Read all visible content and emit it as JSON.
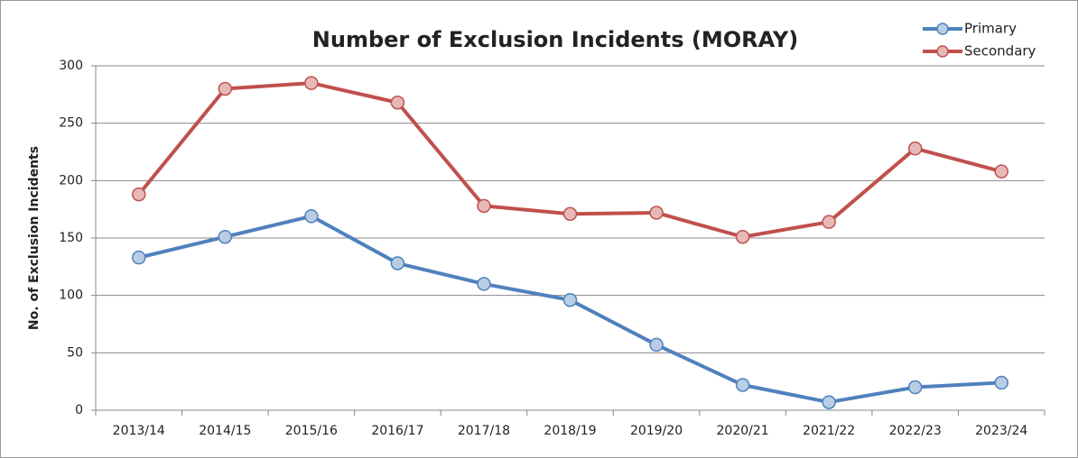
{
  "chart_data": {
    "type": "line",
    "title": "Number of Exclusion Incidents (MORAY)",
    "y_label": "No. of Exclusion Incidents",
    "categories": [
      "2013/14",
      "2014/15",
      "2015/16",
      "2016/17",
      "2017/18",
      "2018/19",
      "2019/20",
      "2020/21",
      "2021/22",
      "2022/23",
      "2023/24"
    ],
    "series": [
      {
        "name": "Primary",
        "color": "#4f81bd",
        "marker_fill": "#b9cde5",
        "values": [
          133,
          151,
          169,
          128,
          110,
          96,
          57,
          22,
          7,
          20,
          24
        ]
      },
      {
        "name": "Secondary",
        "color": "#c0504d",
        "marker_fill": "#e6b9b8",
        "values": [
          188,
          280,
          285,
          268,
          178,
          171,
          172,
          151,
          164,
          228,
          208
        ]
      }
    ],
    "ylim": [
      0,
      300
    ],
    "yticks": [
      0,
      50,
      100,
      150,
      200,
      250,
      300
    ],
    "grid": true,
    "legend": "top-right"
  }
}
